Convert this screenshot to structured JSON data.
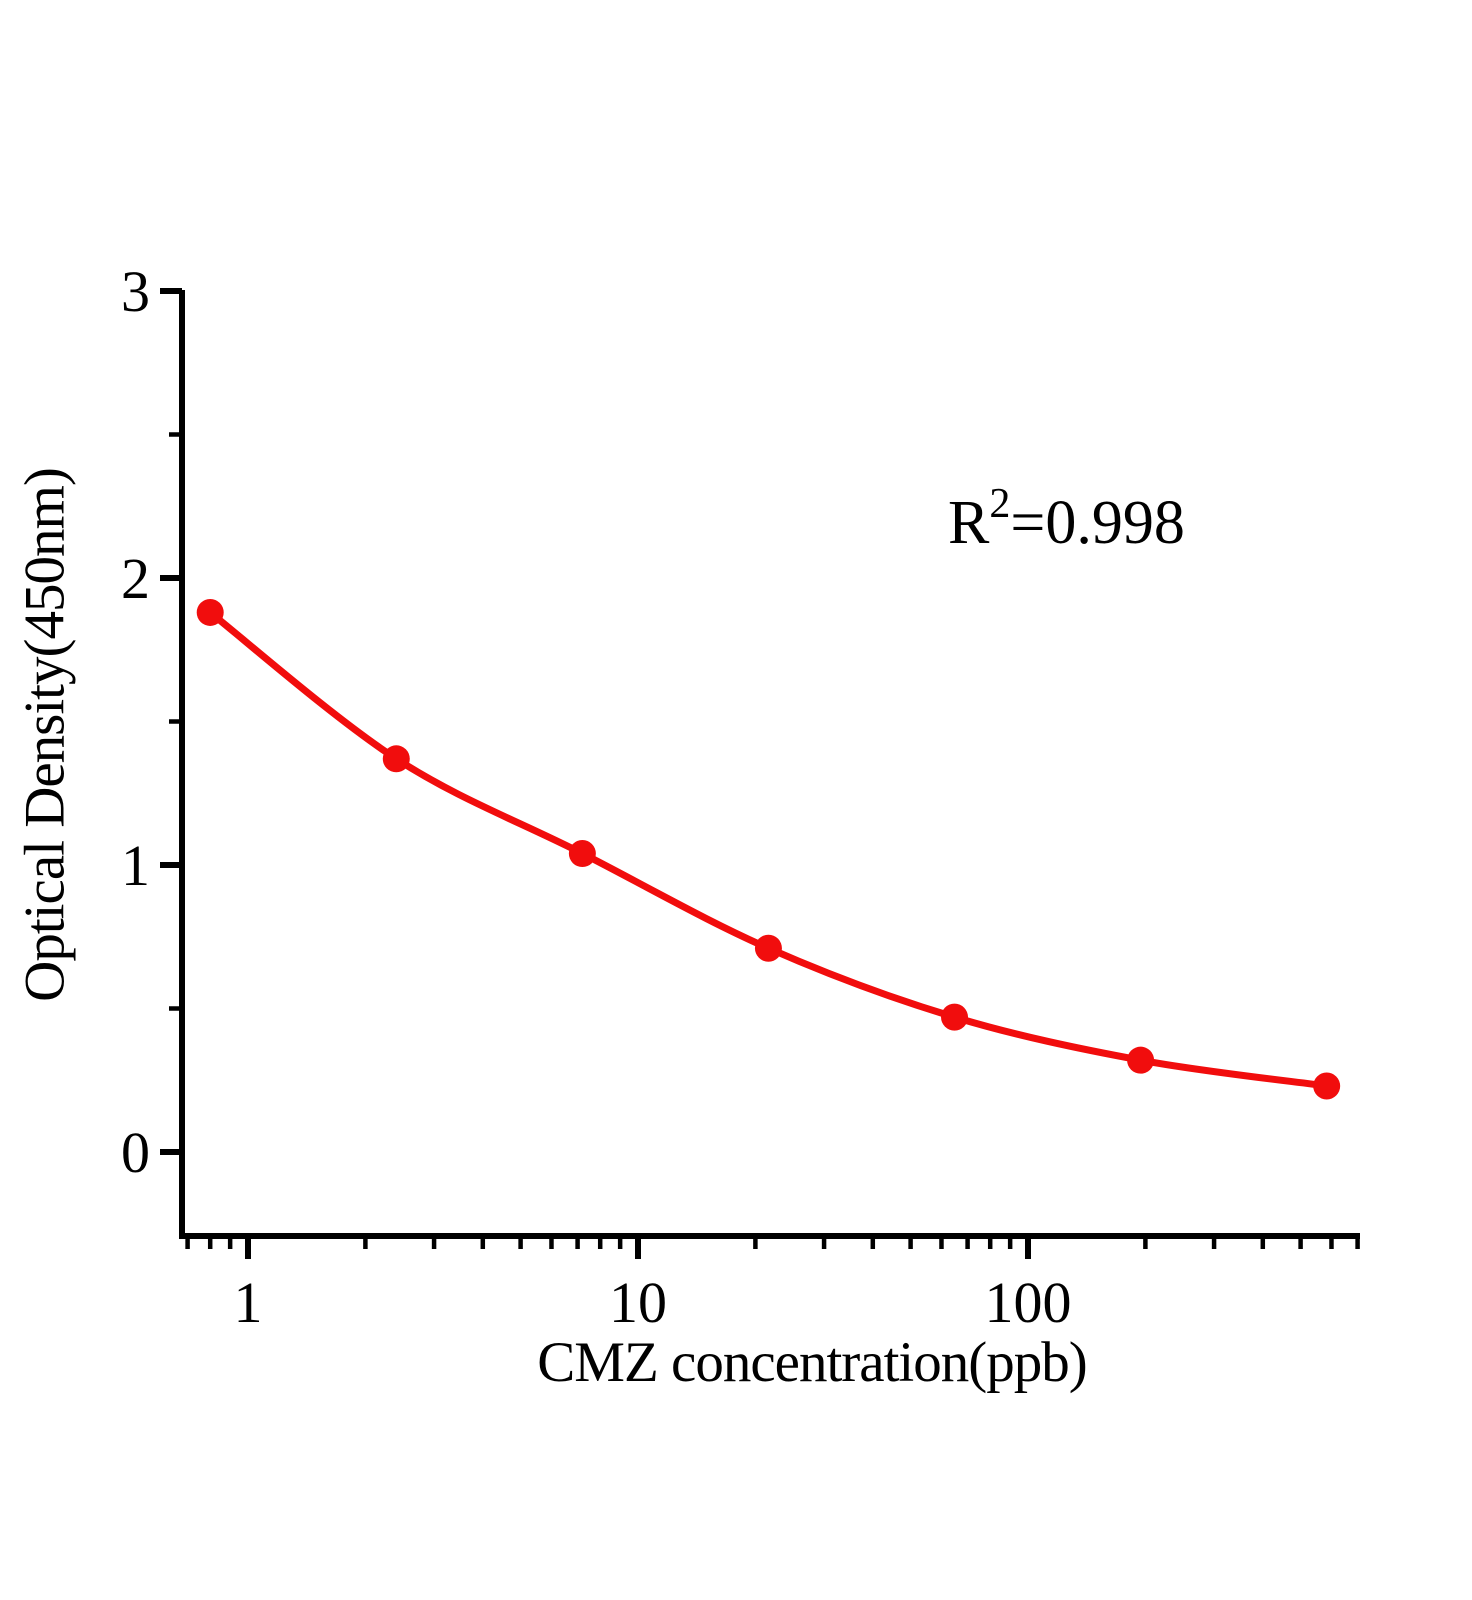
{
  "figure": {
    "xlabel": "CMZ concentration(ppb)",
    "ylabel": "Optical Density(450nm)",
    "annotation": {
      "base": "R",
      "sup": "2",
      "rest": "=0.998"
    }
  },
  "chart_data": {
    "type": "scatter",
    "subtype": "standard-curve-with-fit-line",
    "title": "",
    "xlabel": "CMZ concentration(ppb)",
    "ylabel": "Optical Density(450nm)",
    "annotation": "R2=0.998",
    "x_scale": "log",
    "x": [
      0.8,
      2.4,
      7.2,
      21.6,
      64.8,
      194.4,
      583.2
    ],
    "y": [
      1.88,
      1.37,
      1.04,
      0.71,
      0.47,
      0.32,
      0.23
    ],
    "x_ticks_major": [
      1,
      10,
      100
    ],
    "x_tick_labels": [
      "1",
      "10",
      "100"
    ],
    "y_ticks_major": [
      0,
      1,
      2,
      3
    ],
    "y_tick_labels": [
      "0",
      "1",
      "2",
      "3"
    ],
    "y_ticks_minor": [
      0.5,
      1.5,
      2.5
    ],
    "xlim": [
      0.68,
      710
    ],
    "ylim": [
      -0.29,
      3
    ],
    "grid": false,
    "legend": false,
    "marker_color": "#f10d0d",
    "line_color": "#f10d0d",
    "axis_color": "#000000"
  }
}
